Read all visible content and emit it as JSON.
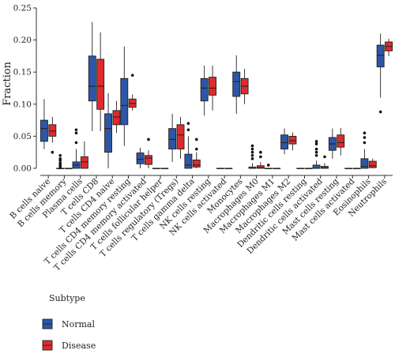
{
  "chart_data": {
    "type": "box",
    "ylabel": "Fraction",
    "ylim": [
      0,
      0.25
    ],
    "yticks": [
      0.0,
      0.05,
      0.1,
      0.15,
      0.2,
      0.25
    ],
    "ytick_labels": [
      "0.00",
      "0.05",
      "0.10",
      "0.15",
      "0.20",
      "0.25"
    ],
    "grid": false,
    "categories": [
      "B cells naive",
      "B cells memory",
      "Plasma cells",
      "T cells CD8",
      "T cells CD4 naive",
      "T cells CD4 memory resting",
      "T cells CD4 memory activated",
      "T cells follicular helper",
      "T cells regulatory (Tregs)",
      "T cells gamma delta",
      "NK cells resting",
      "NK cells activated",
      "Monocytes",
      "Macrophages M0",
      "Macrophages M1",
      "Macrophages M2",
      "Dendritic cells resting",
      "Dendritic cells activated",
      "Mast cells resting",
      "Mast cells activated",
      "Eosinophils",
      "Neutrophils"
    ],
    "legend": {
      "title": "Subtype",
      "position": "bottom-left"
    },
    "series": [
      {
        "name": "Normal",
        "color": "#2d56a6",
        "boxes": [
          {
            "min": 0.03,
            "q1": 0.042,
            "median": 0.062,
            "q3": 0.075,
            "max": 0.108,
            "outliers": []
          },
          {
            "min": 0.0,
            "q1": 0.0,
            "median": 0.0,
            "q3": 0.0,
            "max": 0.0,
            "outliers": [
              0.002,
              0.005,
              0.008,
              0.012,
              0.015,
              0.02
            ]
          },
          {
            "min": 0.0,
            "q1": 0.0,
            "median": 0.005,
            "q3": 0.01,
            "max": 0.03,
            "outliers": [
              0.04,
              0.055,
              0.06
            ]
          },
          {
            "min": 0.058,
            "q1": 0.105,
            "median": 0.128,
            "q3": 0.175,
            "max": 0.228,
            "outliers": []
          },
          {
            "min": 0.0,
            "q1": 0.025,
            "median": 0.062,
            "q3": 0.085,
            "max": 0.117,
            "outliers": []
          },
          {
            "min": 0.035,
            "q1": 0.068,
            "median": 0.098,
            "q3": 0.14,
            "max": 0.19,
            "outliers": []
          },
          {
            "min": 0.0,
            "q1": 0.007,
            "median": 0.014,
            "q3": 0.024,
            "max": 0.032,
            "outliers": []
          },
          {
            "min": 0.0,
            "q1": 0.0,
            "median": 0.0,
            "q3": 0.0,
            "max": 0.0,
            "outliers": []
          },
          {
            "min": 0.01,
            "q1": 0.03,
            "median": 0.045,
            "q3": 0.062,
            "max": 0.085,
            "outliers": []
          },
          {
            "min": 0.0,
            "q1": 0.0,
            "median": 0.005,
            "q3": 0.022,
            "max": 0.05,
            "outliers": [
              0.06,
              0.07
            ]
          },
          {
            "min": 0.082,
            "q1": 0.105,
            "median": 0.125,
            "q3": 0.14,
            "max": 0.16,
            "outliers": []
          },
          {
            "min": 0.0,
            "q1": 0.0,
            "median": 0.0,
            "q3": 0.0,
            "max": 0.0,
            "outliers": []
          },
          {
            "min": 0.085,
            "q1": 0.112,
            "median": 0.135,
            "q3": 0.15,
            "max": 0.176,
            "outliers": []
          },
          {
            "min": 0.0,
            "q1": 0.0,
            "median": 0.0,
            "q3": 0.002,
            "max": 0.008,
            "outliers": [
              0.015,
              0.02,
              0.025,
              0.03,
              0.035
            ]
          },
          {
            "min": 0.0,
            "q1": 0.0,
            "median": 0.0,
            "q3": 0.0,
            "max": 0.0,
            "outliers": [
              0.005
            ]
          },
          {
            "min": 0.022,
            "q1": 0.03,
            "median": 0.04,
            "q3": 0.052,
            "max": 0.062,
            "outliers": []
          },
          {
            "min": 0.0,
            "q1": 0.0,
            "median": 0.0,
            "q3": 0.0,
            "max": 0.0,
            "outliers": []
          },
          {
            "min": 0.0,
            "q1": 0.0,
            "median": 0.0,
            "q3": 0.005,
            "max": 0.012,
            "outliers": [
              0.02,
              0.025,
              0.03,
              0.038,
              0.042
            ]
          },
          {
            "min": 0.015,
            "q1": 0.028,
            "median": 0.038,
            "q3": 0.048,
            "max": 0.062,
            "outliers": []
          },
          {
            "min": 0.0,
            "q1": 0.0,
            "median": 0.0,
            "q3": 0.0,
            "max": 0.0,
            "outliers": []
          },
          {
            "min": 0.0,
            "q1": 0.0,
            "median": 0.003,
            "q3": 0.015,
            "max": 0.03,
            "outliers": [
              0.04,
              0.048,
              0.055
            ]
          },
          {
            "min": 0.11,
            "q1": 0.158,
            "median": 0.176,
            "q3": 0.192,
            "max": 0.21,
            "outliers": [
              0.088
            ]
          }
        ]
      },
      {
        "name": "Disease",
        "color": "#e0292f",
        "boxes": [
          {
            "min": 0.04,
            "q1": 0.05,
            "median": 0.058,
            "q3": 0.068,
            "max": 0.08,
            "outliers": [
              0.025
            ]
          },
          {
            "min": 0.0,
            "q1": 0.0,
            "median": 0.0,
            "q3": 0.0,
            "max": 0.0,
            "outliers": []
          },
          {
            "min": 0.0,
            "q1": 0.0,
            "median": 0.01,
            "q3": 0.018,
            "max": 0.042,
            "outliers": []
          },
          {
            "min": 0.058,
            "q1": 0.092,
            "median": 0.128,
            "q3": 0.17,
            "max": 0.212,
            "outliers": []
          },
          {
            "min": 0.055,
            "q1": 0.068,
            "median": 0.08,
            "q3": 0.09,
            "max": 0.105,
            "outliers": []
          },
          {
            "min": 0.09,
            "q1": 0.095,
            "median": 0.101,
            "q3": 0.108,
            "max": 0.115,
            "outliers": [
              0.145
            ]
          },
          {
            "min": 0.0,
            "q1": 0.006,
            "median": 0.016,
            "q3": 0.02,
            "max": 0.028,
            "outliers": [
              0.045
            ]
          },
          {
            "min": 0.0,
            "q1": 0.0,
            "median": 0.0,
            "q3": 0.0,
            "max": 0.0,
            "outliers": []
          },
          {
            "min": 0.015,
            "q1": 0.03,
            "median": 0.052,
            "q3": 0.068,
            "max": 0.08,
            "outliers": []
          },
          {
            "min": 0.0,
            "q1": 0.002,
            "median": 0.005,
            "q3": 0.013,
            "max": 0.025,
            "outliers": [
              0.03,
              0.045
            ]
          },
          {
            "min": 0.09,
            "q1": 0.114,
            "median": 0.125,
            "q3": 0.142,
            "max": 0.16,
            "outliers": []
          },
          {
            "min": 0.0,
            "q1": 0.0,
            "median": 0.0,
            "q3": 0.0,
            "max": 0.0,
            "outliers": []
          },
          {
            "min": 0.1,
            "q1": 0.116,
            "median": 0.128,
            "q3": 0.14,
            "max": 0.155,
            "outliers": []
          },
          {
            "min": 0.0,
            "q1": 0.0,
            "median": 0.001,
            "q3": 0.004,
            "max": 0.01,
            "outliers": [
              0.018,
              0.025
            ]
          },
          {
            "min": 0.0,
            "q1": 0.0,
            "median": 0.0,
            "q3": 0.0,
            "max": 0.0,
            "outliers": []
          },
          {
            "min": 0.028,
            "q1": 0.038,
            "median": 0.043,
            "q3": 0.05,
            "max": 0.056,
            "outliers": []
          },
          {
            "min": 0.0,
            "q1": 0.0,
            "median": 0.0,
            "q3": 0.0,
            "max": 0.0,
            "outliers": []
          },
          {
            "min": 0.0,
            "q1": 0.0,
            "median": 0.001,
            "q3": 0.003,
            "max": 0.008,
            "outliers": [
              0.018
            ]
          },
          {
            "min": 0.02,
            "q1": 0.033,
            "median": 0.04,
            "q3": 0.052,
            "max": 0.063,
            "outliers": []
          },
          {
            "min": 0.0,
            "q1": 0.0,
            "median": 0.0,
            "q3": 0.0,
            "max": 0.0,
            "outliers": []
          },
          {
            "min": 0.0,
            "q1": 0.001,
            "median": 0.004,
            "q3": 0.011,
            "max": 0.015,
            "outliers": []
          },
          {
            "min": 0.175,
            "q1": 0.183,
            "median": 0.19,
            "q3": 0.197,
            "max": 0.202,
            "outliers": []
          }
        ]
      }
    ]
  }
}
